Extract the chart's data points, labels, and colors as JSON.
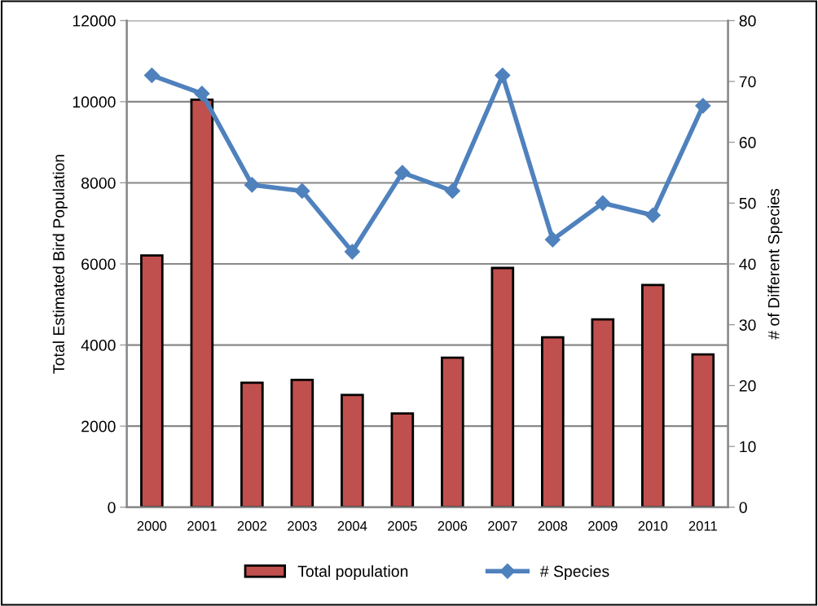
{
  "chart_data": {
    "type": "bar",
    "categories": [
      "2000",
      "2001",
      "2002",
      "2003",
      "2004",
      "2005",
      "2006",
      "2007",
      "2008",
      "2009",
      "2010",
      "2011"
    ],
    "series": [
      {
        "name": "Total population",
        "color": "#c0504d",
        "values": [
          6210,
          10050,
          3070,
          3140,
          2770,
          2310,
          3690,
          5900,
          4190,
          4630,
          5480,
          3770
        ]
      },
      {
        "name": "# Species",
        "type": "line",
        "axis": "y2",
        "color": "#4f81bd",
        "marker": "diamond",
        "values": [
          71,
          68,
          53,
          52,
          42,
          55,
          52,
          71,
          44,
          50,
          48,
          66
        ]
      }
    ],
    "ylabel": "Total Estimated Bird Population",
    "y2label": "# of Different Species",
    "ylim": [
      0,
      12000
    ],
    "yticks": [
      0,
      2000,
      4000,
      6000,
      8000,
      10000,
      12000
    ],
    "y2lim": [
      0,
      80
    ],
    "y2ticks": [
      0,
      10,
      20,
      30,
      40,
      50,
      60,
      70,
      80
    ],
    "grid": "y",
    "legend": "bottom"
  }
}
